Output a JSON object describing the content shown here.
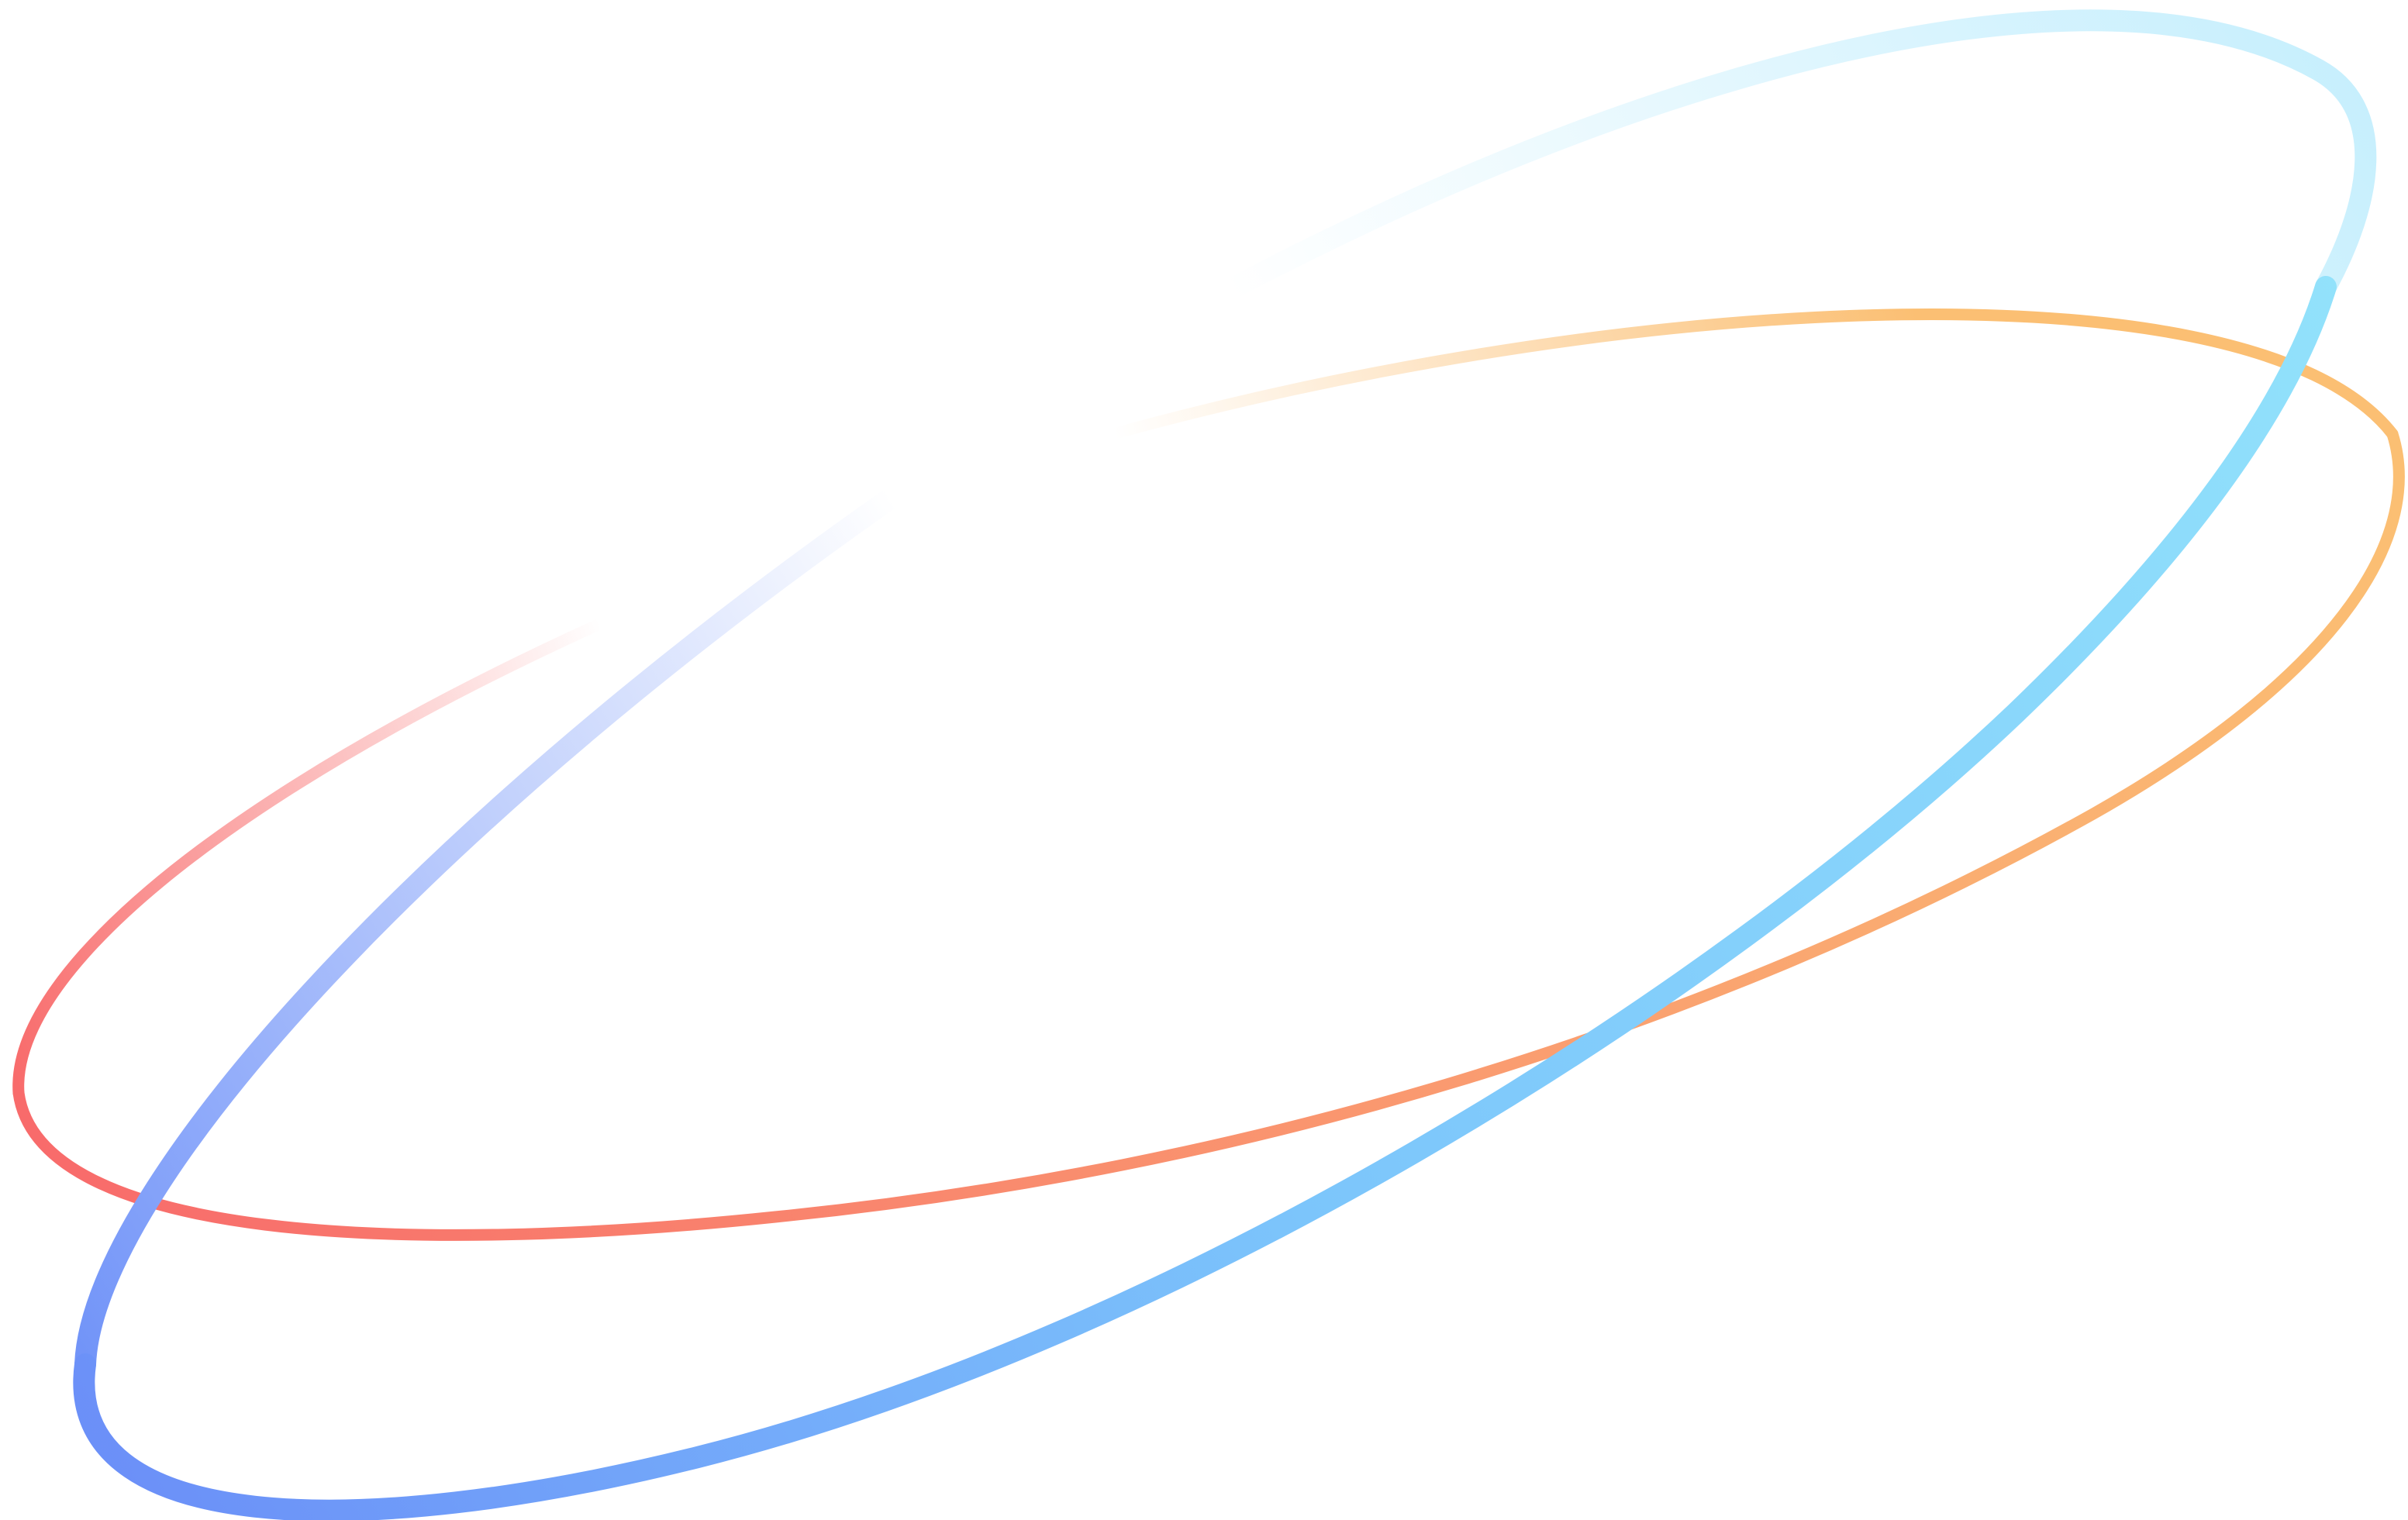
{
  "rings": [
    {
      "name": "blue-ring",
      "colors": {
        "start": "#6b8ff8",
        "mid": "#ffffff",
        "end": "#93e3fb",
        "far": "#c7effd"
      }
    },
    {
      "name": "orange-ring",
      "colors": {
        "start": "#f86b6b",
        "mid": "#ffffff",
        "end": "#fbbf73",
        "far": "#fbd3b8"
      }
    }
  ]
}
